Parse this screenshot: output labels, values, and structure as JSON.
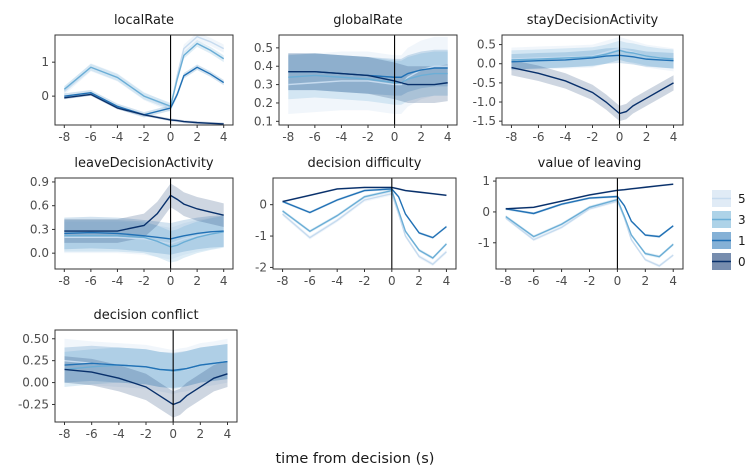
{
  "figure": {
    "xlabel": "time from decision (s)"
  },
  "legend": {
    "title": "",
    "entries": [
      {
        "label": "5",
        "color": "#c6dbef"
      },
      {
        "label": "3",
        "color": "#6baed6"
      },
      {
        "label": "1",
        "color": "#2171b5"
      },
      {
        "label": "0",
        "color": "#08306b"
      }
    ]
  },
  "chart_data": [
    {
      "type": "line",
      "title": "localRate",
      "xlabel": "",
      "ylabel": "",
      "xlim": [
        -8.7,
        4.7
      ],
      "ylim": [
        -0.85,
        1.8
      ],
      "xticks": [
        -8,
        -6,
        -4,
        -2,
        0,
        2,
        4
      ],
      "yticks": [
        0,
        1
      ],
      "ytick_labels": [
        "0",
        "1"
      ],
      "x": [
        -8,
        -6,
        -4,
        -2,
        0,
        0.5,
        1,
        2,
        3,
        4
      ],
      "series": [
        {
          "name": "5",
          "values": [
            0.15,
            0.85,
            0.55,
            0.0,
            -0.35,
            0.6,
            1.4,
            1.75,
            1.6,
            1.4
          ],
          "band": 0.12
        },
        {
          "name": "3",
          "values": [
            0.2,
            0.85,
            0.55,
            0.0,
            -0.3,
            0.5,
            1.2,
            1.55,
            1.35,
            1.1
          ],
          "band": 0.1
        },
        {
          "name": "1",
          "values": [
            0.0,
            0.1,
            -0.3,
            -0.55,
            -0.35,
            0.05,
            0.6,
            0.85,
            0.65,
            0.4
          ],
          "band": 0.08
        },
        {
          "name": "0",
          "values": [
            -0.05,
            0.05,
            -0.35,
            -0.55,
            -0.7,
            -0.72,
            -0.75,
            -0.78,
            -0.8,
            -0.82
          ],
          "band": 0.04
        }
      ]
    },
    {
      "type": "line",
      "title": "globalRate",
      "xlabel": "",
      "ylabel": "",
      "xlim": [
        -8.7,
        4.7
      ],
      "ylim": [
        0.08,
        0.57
      ],
      "xticks": [
        -8,
        -6,
        -4,
        -2,
        0,
        2,
        4
      ],
      "yticks": [
        0.1,
        0.2,
        0.3,
        0.4,
        0.5
      ],
      "ytick_labels": [
        "0.1",
        "0.2",
        "0.3",
        "0.4",
        "0.5"
      ],
      "x": [
        -8,
        -6,
        -4,
        -2,
        0,
        0.5,
        1,
        2,
        3,
        4
      ],
      "series": [
        {
          "name": "5",
          "values": [
            0.3,
            0.31,
            0.32,
            0.32,
            0.3,
            0.3,
            0.34,
            0.38,
            0.4,
            0.4
          ],
          "band": 0.16
        },
        {
          "name": "3",
          "values": [
            0.34,
            0.35,
            0.34,
            0.33,
            0.31,
            0.31,
            0.33,
            0.35,
            0.36,
            0.36
          ],
          "band": 0.12
        },
        {
          "name": "1",
          "values": [
            0.37,
            0.37,
            0.36,
            0.35,
            0.34,
            0.34,
            0.36,
            0.38,
            0.39,
            0.39
          ],
          "band": 0.1
        },
        {
          "name": "0",
          "values": [
            0.37,
            0.37,
            0.36,
            0.35,
            0.32,
            0.31,
            0.3,
            0.3,
            0.3,
            0.31
          ],
          "band": 0.1
        }
      ]
    },
    {
      "type": "line",
      "title": "stayDecisionActivity",
      "xlabel": "",
      "ylabel": "",
      "xlim": [
        -8.7,
        4.7
      ],
      "ylim": [
        -1.6,
        0.75
      ],
      "xticks": [
        -8,
        -6,
        -4,
        -2,
        0,
        2,
        4
      ],
      "yticks": [
        0.5,
        0.0,
        -0.5,
        -1.0,
        -1.5
      ],
      "ytick_labels": [
        "0.5",
        "0.0",
        "-0.5",
        "-1.0",
        "-1.5"
      ],
      "x": [
        -8,
        -6,
        -4,
        -2,
        -1,
        0,
        0.5,
        1,
        2,
        3,
        4
      ],
      "series": [
        {
          "name": "5",
          "values": [
            0.12,
            0.15,
            0.17,
            0.2,
            0.3,
            0.4,
            0.35,
            0.3,
            0.2,
            0.15,
            0.1
          ],
          "band": 0.3
        },
        {
          "name": "3",
          "values": [
            0.1,
            0.12,
            0.15,
            0.18,
            0.25,
            0.35,
            0.3,
            0.28,
            0.2,
            0.15,
            0.12
          ],
          "band": 0.25
        },
        {
          "name": "1",
          "values": [
            0.05,
            0.08,
            0.1,
            0.15,
            0.2,
            0.22,
            0.2,
            0.18,
            0.12,
            0.1,
            0.08
          ],
          "band": 0.2
        },
        {
          "name": "0",
          "values": [
            -0.1,
            -0.25,
            -0.45,
            -0.75,
            -1.0,
            -1.3,
            -1.25,
            -1.1,
            -0.9,
            -0.7,
            -0.5
          ],
          "band": 0.2
        }
      ]
    },
    {
      "type": "line",
      "title": "leaveDecisionActivity",
      "xlabel": "",
      "ylabel": "",
      "xlim": [
        -8.7,
        4.7
      ],
      "ylim": [
        -0.2,
        0.95
      ],
      "xticks": [
        -8,
        -6,
        -4,
        -2,
        0,
        2,
        4
      ],
      "yticks": [
        0.9,
        0.6,
        0.3,
        0.0
      ],
      "ytick_labels": [
        "0.9",
        "0.6",
        "0.3",
        "0.0"
      ],
      "x": [
        -8,
        -6,
        -4,
        -2,
        -1,
        0,
        0.5,
        1,
        2,
        3,
        4
      ],
      "series": [
        {
          "name": "5",
          "values": [
            0.2,
            0.2,
            0.2,
            0.18,
            0.15,
            0.12,
            0.15,
            0.18,
            0.22,
            0.25,
            0.28
          ],
          "band": 0.2
        },
        {
          "name": "3",
          "values": [
            0.22,
            0.22,
            0.22,
            0.2,
            0.15,
            0.08,
            0.1,
            0.14,
            0.2,
            0.24,
            0.27
          ],
          "band": 0.2
        },
        {
          "name": "1",
          "values": [
            0.25,
            0.26,
            0.25,
            0.22,
            0.2,
            0.18,
            0.2,
            0.22,
            0.25,
            0.27,
            0.28
          ],
          "band": 0.2
        },
        {
          "name": "0",
          "values": [
            0.28,
            0.28,
            0.28,
            0.35,
            0.5,
            0.73,
            0.68,
            0.62,
            0.56,
            0.52,
            0.48
          ],
          "band": 0.15
        }
      ]
    },
    {
      "type": "line",
      "title": "decision difficulty",
      "xlabel": "",
      "ylabel": "",
      "xlim": [
        -8.7,
        4.7
      ],
      "ylim": [
        -2.05,
        0.85
      ],
      "xticks": [
        -8,
        -6,
        -4,
        -2,
        0,
        2,
        4
      ],
      "yticks": [
        0,
        -1,
        -2
      ],
      "ytick_labels": [
        "0",
        "-1",
        "-2"
      ],
      "x": [
        -8,
        -6,
        -4,
        -2,
        0,
        0.5,
        1,
        2,
        3,
        4
      ],
      "series": [
        {
          "name": "5",
          "values": [
            -0.3,
            -1.05,
            -0.5,
            0.15,
            0.35,
            -0.3,
            -1.0,
            -1.65,
            -1.9,
            -1.5
          ],
          "band": 0.06
        },
        {
          "name": "3",
          "values": [
            -0.2,
            -0.85,
            -0.35,
            0.25,
            0.45,
            -0.2,
            -0.85,
            -1.45,
            -1.7,
            -1.25
          ],
          "band": 0.05
        },
        {
          "name": "1",
          "values": [
            0.1,
            -0.25,
            0.15,
            0.45,
            0.5,
            0.25,
            -0.3,
            -0.9,
            -1.05,
            -0.7
          ],
          "band": 0.04
        },
        {
          "name": "0",
          "values": [
            0.1,
            0.3,
            0.5,
            0.55,
            0.55,
            0.5,
            0.45,
            0.4,
            0.35,
            0.3
          ],
          "band": 0.03
        }
      ]
    },
    {
      "type": "line",
      "title": "value of leaving",
      "xlabel": "",
      "ylabel": "",
      "xlim": [
        -8.7,
        4.7
      ],
      "ylim": [
        -1.85,
        1.1
      ],
      "xticks": [
        -8,
        -6,
        -4,
        -2,
        0,
        2,
        4
      ],
      "yticks": [
        1,
        0,
        -1
      ],
      "ytick_labels": [
        "1",
        "0",
        "-1"
      ],
      "x": [
        -8,
        -6,
        -4,
        -2,
        0,
        0.5,
        1,
        2,
        3,
        4
      ],
      "series": [
        {
          "name": "5",
          "values": [
            -0.2,
            -0.9,
            -0.5,
            0.1,
            0.35,
            -0.2,
            -0.9,
            -1.55,
            -1.75,
            -1.4
          ],
          "band": 0.05
        },
        {
          "name": "3",
          "values": [
            -0.15,
            -0.8,
            -0.4,
            0.15,
            0.4,
            -0.15,
            -0.75,
            -1.35,
            -1.45,
            -1.05
          ],
          "band": 0.05
        },
        {
          "name": "1",
          "values": [
            0.1,
            -0.05,
            0.25,
            0.45,
            0.5,
            0.2,
            -0.3,
            -0.75,
            -0.8,
            -0.45
          ],
          "band": 0.04
        },
        {
          "name": "0",
          "values": [
            0.1,
            0.15,
            0.35,
            0.55,
            0.7,
            0.72,
            0.75,
            0.8,
            0.85,
            0.9
          ],
          "band": 0.03
        }
      ]
    },
    {
      "type": "line",
      "title": "decision conflict",
      "xlabel": "",
      "ylabel": "",
      "xlim": [
        -8.7,
        4.7
      ],
      "ylim": [
        -0.45,
        0.6
      ],
      "xticks": [
        -8,
        -6,
        -4,
        -2,
        0,
        2,
        4
      ],
      "yticks": [
        0.5,
        0.25,
        0.0,
        -0.25
      ],
      "ytick_labels": [
        "0.50",
        "0.25",
        "0.00",
        "-0.25"
      ],
      "x": [
        -8,
        -6,
        -4,
        -2,
        -1,
        0,
        0.5,
        1,
        2,
        3,
        4
      ],
      "series": [
        {
          "name": "5",
          "values": [
            0.25,
            0.22,
            0.2,
            0.18,
            0.15,
            0.12,
            0.14,
            0.15,
            0.2,
            0.22,
            0.25
          ],
          "band": 0.25
        },
        {
          "name": "3",
          "values": [
            0.15,
            0.18,
            0.2,
            0.18,
            0.15,
            0.13,
            0.14,
            0.16,
            0.2,
            0.22,
            0.24
          ],
          "band": 0.2
        },
        {
          "name": "1",
          "values": [
            0.2,
            0.22,
            0.2,
            0.18,
            0.15,
            0.14,
            0.15,
            0.16,
            0.2,
            0.22,
            0.24
          ],
          "band": 0.2
        },
        {
          "name": "0",
          "values": [
            0.15,
            0.12,
            0.05,
            -0.05,
            -0.15,
            -0.25,
            -0.22,
            -0.15,
            -0.05,
            0.05,
            0.1
          ],
          "band": 0.15
        }
      ]
    }
  ]
}
